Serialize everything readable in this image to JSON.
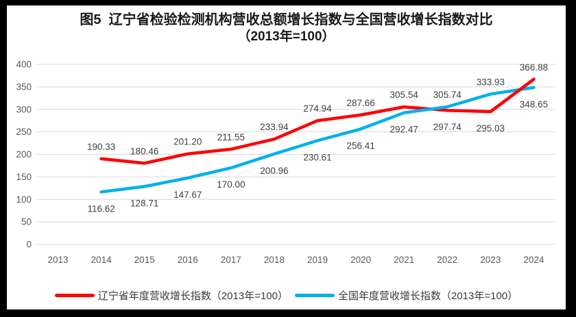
{
  "title": {
    "line1": "图5  辽宁省检验检测机构营收总额增长指数与全国营收增长指数对比",
    "line2": "（2013年=100）"
  },
  "chart_data": {
    "type": "line",
    "categories": [
      "2013",
      "2014",
      "2015",
      "2016",
      "2017",
      "2018",
      "2019",
      "2020",
      "2021",
      "2022",
      "2023",
      "2024"
    ],
    "series": [
      {
        "name": "辽宁省年度营收增长指数（2013年=100）",
        "color": "#FF0000",
        "values": [
          null,
          190.33,
          180.46,
          201.2,
          211.55,
          233.94,
          274.94,
          287.66,
          305.54,
          297.74,
          295.03,
          366.88
        ]
      },
      {
        "name": "全国年度营收增长指数（2013年=100）",
        "color": "#00B0F0",
        "values": [
          null,
          116.62,
          128.71,
          147.67,
          170.0,
          200.96,
          230.61,
          256.41,
          292.47,
          305.74,
          333.93,
          348.65
        ]
      }
    ],
    "ylim": [
      0,
      400
    ],
    "ytick_step": 50,
    "grid": true,
    "gridline_color": "#D9D9D9",
    "legend_position": "bottom",
    "data_labels": true,
    "label_decimals": 2
  }
}
